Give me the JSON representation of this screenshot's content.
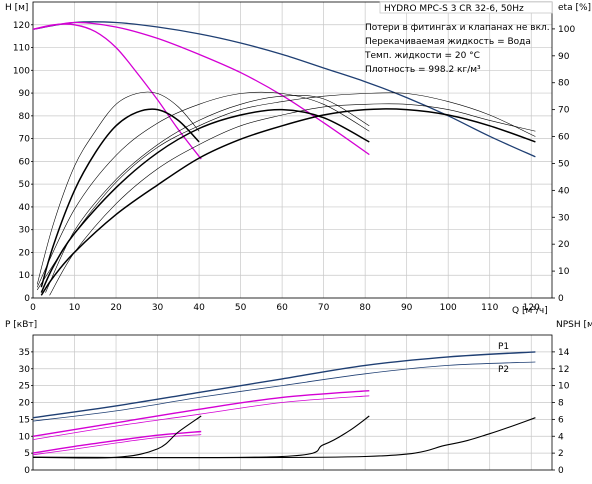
{
  "header": {
    "title": "HYDRO MPC-S 3 CR 32-6, 50Hz",
    "notes": [
      "Потери в фитингах и клапанах не вкл.",
      "Перекачиваемая жидкость = Вода",
      "Темп. жидкости = 20 °C",
      "Плотность = 998.2 кг/м³"
    ]
  },
  "colors": {
    "grid": "#c8c8c8",
    "qh_curve": "#1f3f73",
    "qh_limited": "#d400d4",
    "efficiency": "#000000",
    "power": "#1f3f73",
    "power_limited": "#d400d4",
    "npsh": "#000000"
  },
  "chart_data": [
    {
      "type": "line",
      "name": "top-panel",
      "xlabel": "Q [м³/ч]",
      "ylabel_left": "H [м]",
      "ylabel_right": "eta [%]",
      "xlim": [
        0,
        125
      ],
      "ylim_left": [
        0,
        130
      ],
      "ylim_right": [
        0,
        110
      ],
      "xticks": [
        0,
        10,
        20,
        30,
        40,
        50,
        60,
        70,
        80,
        90,
        100,
        110,
        120
      ],
      "yticks_left": [
        0,
        10,
        20,
        30,
        40,
        50,
        60,
        70,
        80,
        90,
        100,
        110,
        120
      ],
      "yticks_right": [
        0,
        10,
        20,
        30,
        40,
        50,
        60,
        70,
        80,
        90,
        100
      ],
      "grid": true,
      "series": [
        {
          "role": "qh_max",
          "axis": "left",
          "x": [
            0,
            10,
            20,
            30,
            40,
            50,
            60,
            70,
            80,
            90,
            100,
            110,
            121
          ],
          "y": [
            118,
            121,
            121,
            119,
            116,
            112,
            107,
            101,
            95,
            88,
            80,
            71,
            62
          ]
        },
        {
          "role": "qh_limited",
          "axis": "left",
          "x": [
            0,
            5,
            10,
            15,
            20,
            25,
            30,
            35,
            40.5
          ],
          "y": [
            118,
            120,
            120,
            117,
            110,
            99,
            87,
            74,
            61
          ]
        },
        {
          "role": "qh_limited",
          "axis": "left",
          "x": [
            0,
            10,
            20,
            30,
            40,
            50,
            60,
            70,
            81
          ],
          "y": [
            118,
            121,
            119,
            114,
            107,
            99,
            89,
            77,
            63
          ]
        },
        {
          "role": "eta",
          "axis": "right",
          "x": [
            2,
            5,
            10,
            15,
            20,
            25,
            30,
            35,
            40
          ],
          "y": [
            4,
            20,
            40,
            54,
            64,
            69,
            70,
            66,
            58
          ]
        },
        {
          "role": "eta",
          "axis": "right",
          "x": [
            2,
            5,
            10,
            20,
            30,
            40,
            50,
            60,
            70,
            81
          ],
          "y": [
            2,
            12,
            24,
            41,
            54,
            63,
            68,
            70,
            67,
            58
          ]
        },
        {
          "role": "eta",
          "axis": "right",
          "x": [
            2,
            5,
            10,
            20,
            30,
            40,
            50,
            60,
            70,
            80,
            90,
            100,
            110,
            121
          ],
          "y": [
            1,
            8,
            17,
            31,
            42,
            52,
            59,
            64,
            68,
            70,
            70,
            68,
            64,
            58
          ]
        },
        {
          "role": "eta_thin",
          "axis": "right",
          "x": [
            1,
            5,
            10,
            15,
            20,
            25,
            30,
            35,
            40
          ],
          "y": [
            5,
            28,
            49,
            62,
            72,
            76,
            76,
            71,
            62
          ]
        },
        {
          "role": "eta_thin",
          "axis": "right",
          "x": [
            1,
            10,
            20,
            30,
            40,
            50,
            60,
            70,
            81
          ],
          "y": [
            4,
            33,
            53,
            65,
            72,
            76,
            76,
            72,
            62
          ]
        },
        {
          "role": "eta_thin",
          "axis": "right",
          "x": [
            1,
            10,
            20,
            30,
            40,
            50,
            60,
            70,
            80,
            90,
            100,
            110,
            121
          ],
          "y": [
            3,
            24,
            43,
            56,
            64,
            70,
            73,
            75,
            76,
            76,
            73,
            68,
            60
          ]
        },
        {
          "role": "eta_thin",
          "axis": "right",
          "x": [
            3,
            10,
            20,
            30,
            40,
            50,
            60,
            70,
            81
          ],
          "y": [
            2,
            25,
            44,
            57,
            66,
            72,
            75,
            74,
            64
          ]
        },
        {
          "role": "eta_thin",
          "axis": "right",
          "x": [
            4,
            10,
            20,
            30,
            40,
            50,
            60,
            70,
            80,
            90,
            100,
            110,
            121
          ],
          "y": [
            1,
            17,
            35,
            48,
            57,
            64,
            68,
            71,
            72,
            72,
            70,
            66,
            62
          ]
        }
      ]
    },
    {
      "type": "line",
      "name": "bottom-panel",
      "ylabel_left": "P [кВт]",
      "ylabel_right": "NPSH [м]",
      "xlim": [
        0,
        125
      ],
      "ylim_left": [
        0,
        40
      ],
      "ylim_right": [
        0,
        16
      ],
      "yticks_left": [
        0,
        5,
        10,
        15,
        20,
        25,
        30,
        35
      ],
      "yticks_right": [
        0,
        2,
        4,
        6,
        8,
        10,
        12,
        14
      ],
      "grid": true,
      "series": [
        {
          "name": "P1",
          "role": "p1",
          "axis": "left",
          "x": [
            0,
            20,
            40,
            60,
            80,
            100,
            121
          ],
          "y": [
            15.5,
            19,
            23,
            27,
            31,
            33.5,
            35
          ]
        },
        {
          "name": "P2",
          "role": "p2",
          "axis": "left",
          "x": [
            0,
            20,
            40,
            60,
            80,
            100,
            121
          ],
          "y": [
            14.5,
            17.5,
            21.5,
            25,
            28.5,
            31,
            32
          ]
        },
        {
          "role": "p_limited",
          "axis": "left",
          "x": [
            0,
            20,
            40,
            60,
            81
          ],
          "y": [
            10,
            14,
            18,
            21.5,
            23.5
          ]
        },
        {
          "role": "p_limited_thin",
          "axis": "left",
          "x": [
            0,
            20,
            40,
            60,
            81
          ],
          "y": [
            9,
            13,
            16.5,
            20,
            22
          ]
        },
        {
          "role": "p_limited",
          "axis": "left",
          "x": [
            0,
            10,
            20,
            30,
            40.5
          ],
          "y": [
            5,
            7,
            8.7,
            10.3,
            11.4
          ]
        },
        {
          "role": "p_limited_thin",
          "axis": "left",
          "x": [
            0,
            10,
            20,
            30,
            40.5
          ],
          "y": [
            4.5,
            6.2,
            8,
            9.6,
            10.5
          ]
        },
        {
          "role": "npsh",
          "axis": "right",
          "x": [
            0,
            20,
            30,
            35,
            40.5
          ],
          "y": [
            1.5,
            1.5,
            2.5,
            4.5,
            6.4
          ]
        },
        {
          "role": "npsh",
          "axis": "right",
          "x": [
            0,
            60,
            70,
            76,
            81
          ],
          "y": [
            1.5,
            1.6,
            3,
            4.6,
            6.4
          ]
        },
        {
          "role": "npsh",
          "axis": "right",
          "x": [
            0,
            80,
            100,
            110,
            121
          ],
          "y": [
            1.5,
            1.6,
            3,
            4.3,
            6.2
          ]
        }
      ]
    }
  ]
}
